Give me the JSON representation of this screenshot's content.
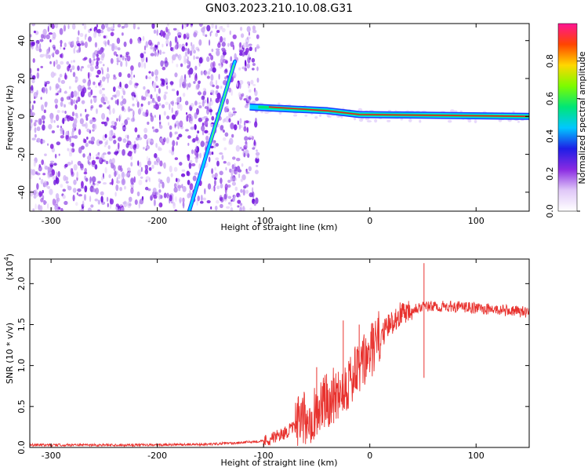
{
  "title": "GN03.2023.210.10.08.G31",
  "chart_data": [
    {
      "type": "heatmap",
      "xlabel": "Height of straight line (km)",
      "ylabel": "Frequency (Hz)",
      "xlim": [
        -320,
        150
      ],
      "ylim": [
        -50,
        49
      ],
      "x_ticks": [
        -300,
        -200,
        -100,
        0,
        100
      ],
      "y_ticks": [
        -40,
        -20,
        0,
        20,
        40
      ],
      "colorbar": {
        "label": "Normalized spectral amplitude",
        "range": [
          0,
          1
        ],
        "ticks": [
          "0.0",
          "0.2",
          "0.4",
          "0.6",
          "0.8"
        ],
        "colors": [
          "#ffffff",
          "#e0c8f8",
          "#8a2be2",
          "#1e1ee6",
          "#00c8ff",
          "#00e676",
          "#7cfc00",
          "#ffd700",
          "#ff4500",
          "#ff1493"
        ]
      },
      "features": [
        {
          "name": "tilted line",
          "x": [
            -170,
            -127
          ],
          "y": [
            -50,
            29
          ]
        },
        {
          "name": "horizontal line",
          "x": [
            -113,
            150
          ],
          "y": [
            5,
            0
          ]
        }
      ]
    },
    {
      "type": "line",
      "xlabel": "Height of straight line (km)",
      "ylabel": "SNR (10 * v/v)",
      "y_multiplier": "(x10",
      "y_multiplier_exp": "4",
      "y_multiplier_close": ")",
      "xlim": [
        -320,
        150
      ],
      "ylim": [
        0,
        2.3
      ],
      "x_ticks": [
        -300,
        -200,
        -100,
        0,
        100
      ],
      "y_ticks": [
        "0.0",
        "0.5",
        "1.0",
        "1.5",
        "2.0"
      ],
      "line_color": "#e8322e",
      "x": [
        -320,
        -250,
        -200,
        -150,
        -120,
        -100,
        -90,
        -80,
        -70,
        -60,
        -50,
        -40,
        -30,
        -20,
        -10,
        0,
        10,
        20,
        30,
        40,
        50,
        60,
        80,
        100,
        120,
        150
      ],
      "y": [
        0.03,
        0.03,
        0.03,
        0.04,
        0.06,
        0.08,
        0.12,
        0.18,
        0.25,
        0.35,
        0.45,
        0.58,
        0.68,
        0.8,
        0.95,
        1.15,
        1.35,
        1.52,
        1.65,
        1.7,
        1.72,
        1.72,
        1.72,
        1.7,
        1.68,
        1.65
      ],
      "spikes": [
        {
          "x": 51,
          "y": 2.25
        },
        {
          "x": 51,
          "y": 0.85
        },
        {
          "x": -50,
          "y": 0.98
        },
        {
          "x": -25,
          "y": 1.55
        },
        {
          "x": -10,
          "y": 1.5
        }
      ]
    }
  ]
}
